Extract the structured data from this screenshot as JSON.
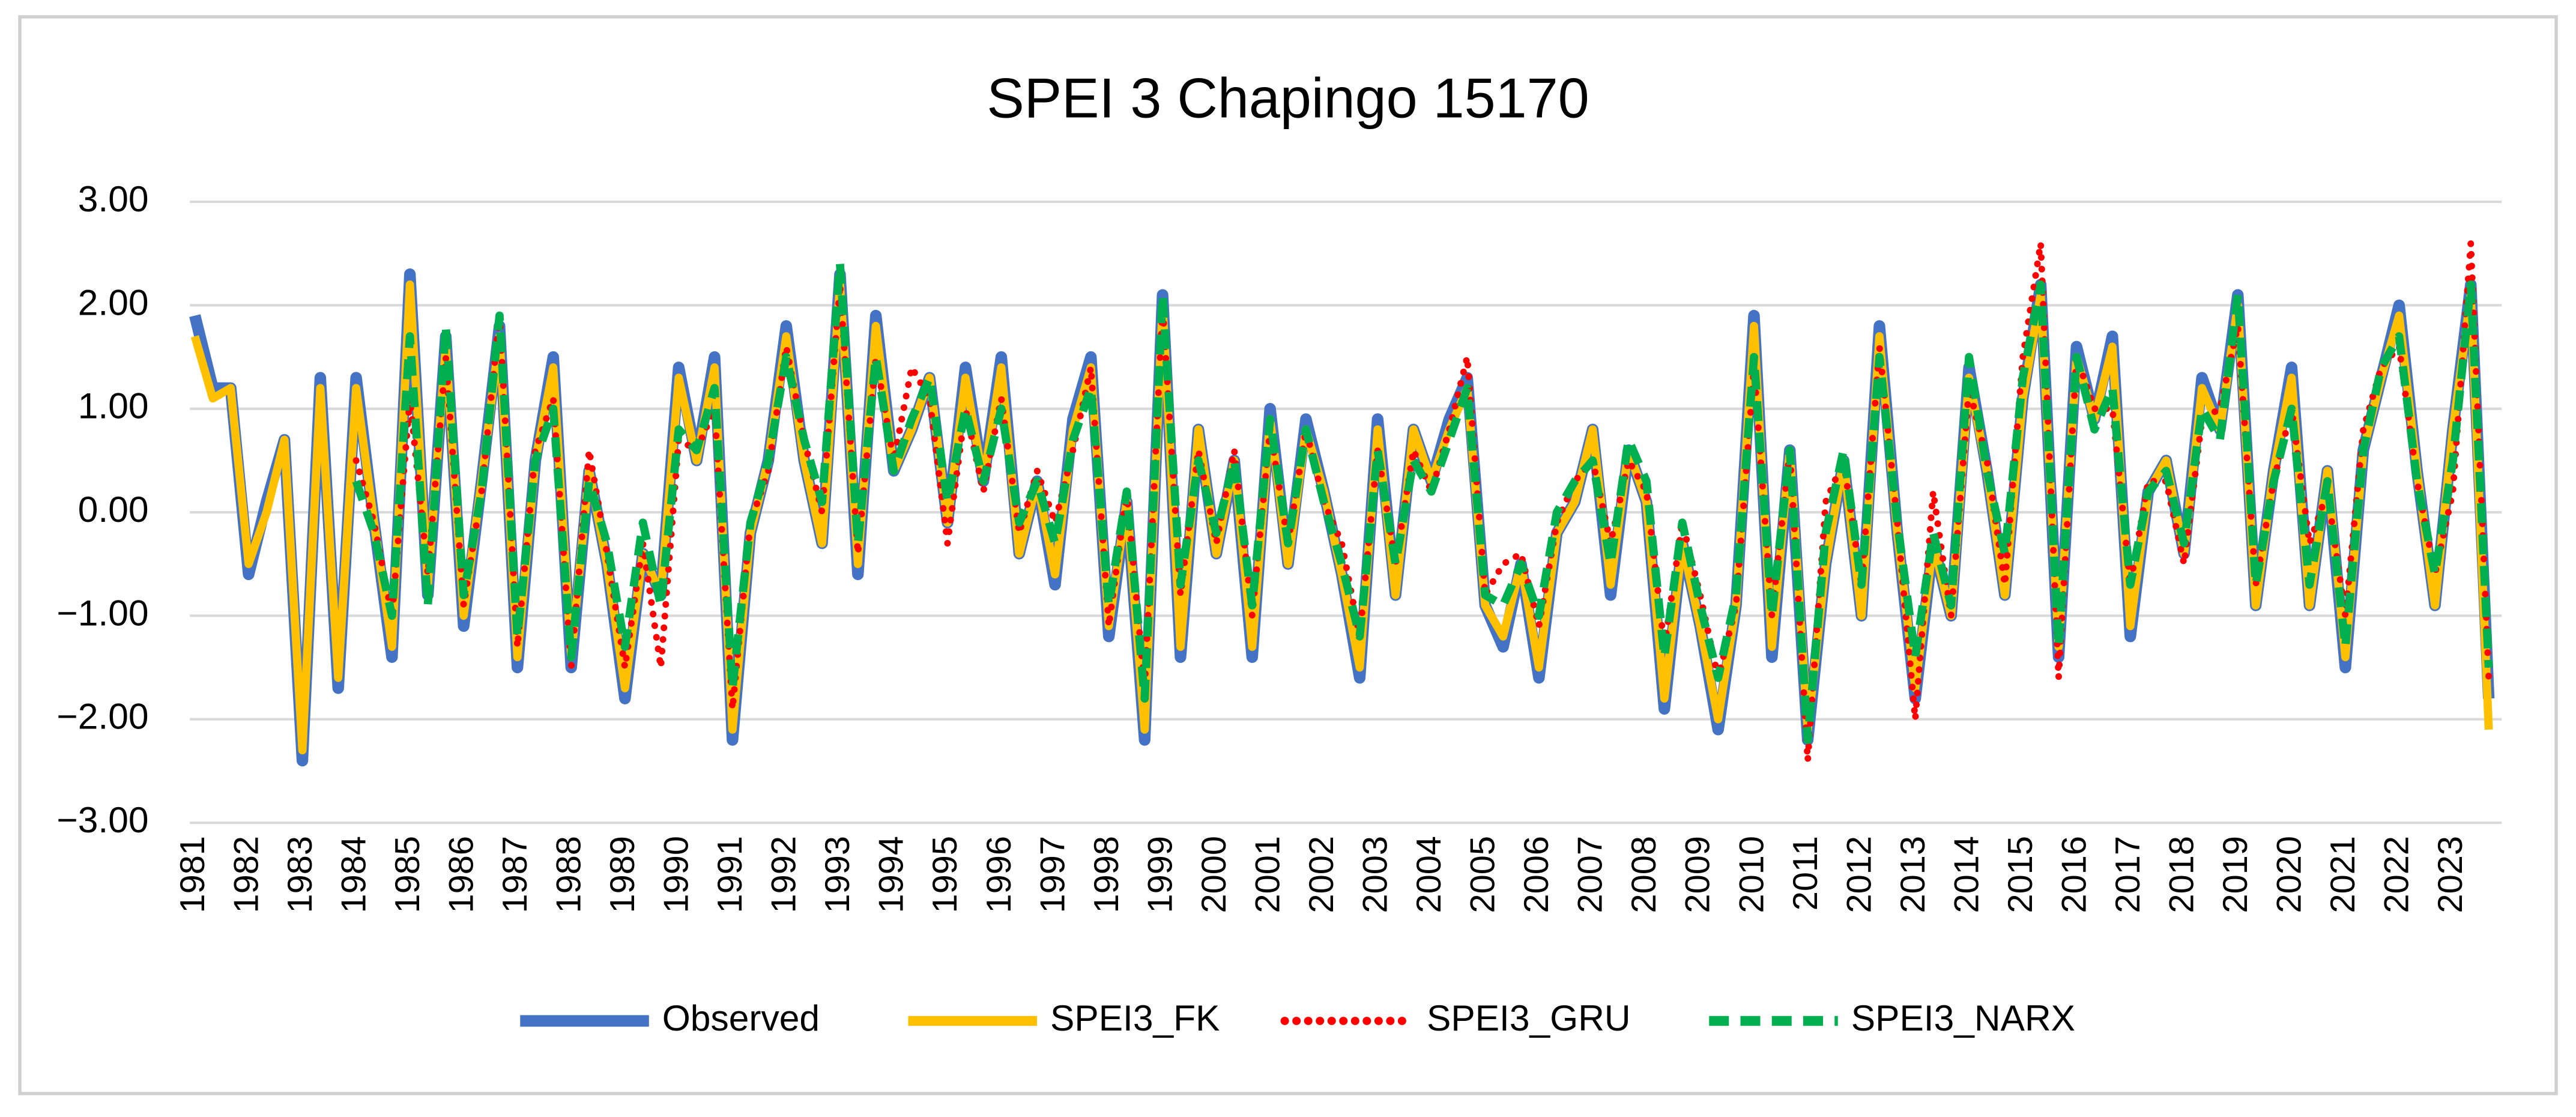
{
  "chart_data": {
    "type": "line",
    "title": "SPEI 3 Chapingo 15170",
    "categories": [
      "1981",
      null,
      null,
      "1982",
      null,
      null,
      "1983",
      null,
      null,
      "1984",
      null,
      null,
      "1985",
      null,
      null,
      "1986",
      null,
      null,
      "1987",
      null,
      null,
      "1988",
      null,
      null,
      "1989",
      null,
      null,
      "1990",
      null,
      null,
      "1991",
      null,
      null,
      "1992",
      null,
      null,
      "1993",
      null,
      null,
      "1994",
      null,
      null,
      "1995",
      null,
      null,
      "1996",
      null,
      null,
      "1997",
      null,
      null,
      "1998",
      null,
      null,
      "1999",
      null,
      null,
      "2000",
      null,
      null,
      "2001",
      null,
      null,
      "2002",
      null,
      null,
      "2003",
      null,
      null,
      "2004",
      null,
      null,
      "2005",
      null,
      null,
      "2006",
      null,
      null,
      "2007",
      null,
      null,
      "2008",
      null,
      null,
      "2009",
      null,
      null,
      "2010",
      null,
      null,
      "2011",
      null,
      null,
      "2012",
      null,
      null,
      "2013",
      null,
      null,
      "2014",
      null,
      null,
      "2015",
      null,
      null,
      "2016",
      null,
      null,
      "2017",
      null,
      null,
      "2018",
      null,
      null,
      "2019",
      null,
      null,
      "2020",
      null,
      null,
      "2021",
      null,
      null,
      "2022",
      null,
      null,
      "2023",
      null,
      null
    ],
    "series": [
      {
        "name": "Observed",
        "color": "#4472c4",
        "style": "solid",
        "values": [
          1.9,
          1.2,
          1.2,
          -0.6,
          0.1,
          0.7,
          -2.4,
          1.3,
          -1.7,
          1.3,
          -0.1,
          -1.4,
          2.3,
          -0.8,
          1.7,
          -1.1,
          0.3,
          1.8,
          -1.5,
          0.5,
          1.5,
          -1.5,
          0.4,
          -0.5,
          -1.8,
          -0.4,
          -0.8,
          1.4,
          0.5,
          1.5,
          -2.2,
          -0.2,
          0.5,
          1.8,
          0.5,
          -0.3,
          2.3,
          -0.6,
          1.9,
          0.4,
          0.8,
          1.3,
          -0.1,
          1.4,
          0.3,
          1.5,
          -0.4,
          0.3,
          -0.7,
          0.9,
          1.5,
          -1.2,
          0.1,
          -2.2,
          2.1,
          -1.4,
          0.8,
          -0.4,
          0.5,
          -1.4,
          1.0,
          -0.5,
          0.9,
          0.2,
          -0.6,
          -1.6,
          0.9,
          -0.8,
          0.8,
          0.3,
          0.9,
          1.3,
          -0.9,
          -1.3,
          -0.5,
          -1.6,
          -0.2,
          0.1,
          0.8,
          -0.8,
          0.6,
          0.1,
          -1.9,
          -0.3,
          -1.1,
          -2.1,
          -0.9,
          1.9,
          -1.4,
          0.6,
          -2.2,
          -0.5,
          0.5,
          -1.0,
          1.8,
          -0.2,
          -1.8,
          -0.3,
          -1.0,
          1.4,
          0.4,
          -0.8,
          1.1,
          2.2,
          -1.4,
          1.6,
          0.9,
          1.7,
          -1.2,
          0.2,
          0.5,
          -0.4,
          1.3,
          0.8,
          2.1,
          -0.9,
          0.4,
          1.4,
          -0.9,
          0.4,
          -1.5,
          0.6,
          1.3,
          2.0,
          0.4,
          -0.9,
          0.8,
          2.2,
          -1.8
        ]
      },
      {
        "name": "SPEI3_FK",
        "color": "#ffc000",
        "style": "solid",
        "values": [
          1.7,
          1.1,
          1.2,
          -0.5,
          0.0,
          0.7,
          -2.3,
          1.2,
          -1.6,
          1.2,
          -0.1,
          -1.3,
          2.2,
          -0.7,
          1.6,
          -1.0,
          0.3,
          1.7,
          -1.4,
          0.5,
          1.4,
          -1.4,
          0.4,
          -0.5,
          -1.7,
          -0.4,
          -0.8,
          1.3,
          0.5,
          1.4,
          -2.1,
          -0.2,
          0.5,
          1.7,
          0.5,
          -0.3,
          2.2,
          -0.5,
          1.8,
          0.4,
          0.8,
          1.3,
          -0.1,
          1.3,
          0.3,
          1.4,
          -0.4,
          0.3,
          -0.6,
          0.8,
          1.4,
          -1.1,
          0.1,
          -2.1,
          2.0,
          -1.3,
          0.8,
          -0.4,
          0.5,
          -1.3,
          0.9,
          -0.5,
          0.8,
          0.2,
          -0.6,
          -1.5,
          0.8,
          -0.8,
          0.8,
          0.3,
          0.8,
          1.2,
          -0.9,
          -1.2,
          -0.5,
          -1.5,
          -0.2,
          0.1,
          0.8,
          -0.7,
          0.6,
          0.1,
          -1.8,
          -0.3,
          -1.1,
          -2.0,
          -0.9,
          1.8,
          -1.3,
          0.6,
          -2.1,
          -0.5,
          0.5,
          -1.0,
          1.7,
          -0.2,
          -1.7,
          -0.3,
          -1.0,
          1.3,
          0.4,
          -0.8,
          1.1,
          2.1,
          -1.3,
          1.5,
          0.9,
          1.6,
          -1.1,
          0.2,
          0.5,
          -0.4,
          1.2,
          0.8,
          2.0,
          -0.9,
          0.4,
          1.3,
          -0.9,
          0.4,
          -1.4,
          0.6,
          1.3,
          1.9,
          0.4,
          -0.9,
          0.8,
          2.1,
          -2.1
        ]
      },
      {
        "name": "SPEI3_GRU",
        "color": "#ff0000",
        "style": "dotted",
        "values": [
          null,
          null,
          null,
          null,
          null,
          null,
          null,
          null,
          null,
          0.5,
          -0.1,
          -1.0,
          1.1,
          -0.6,
          1.5,
          -0.9,
          0.2,
          1.9,
          -1.3,
          0.6,
          1.1,
          -1.5,
          0.6,
          -0.4,
          -1.5,
          -0.3,
          -1.5,
          0.7,
          0.6,
          1.0,
          -1.9,
          -0.1,
          0.4,
          1.6,
          0.7,
          0.0,
          2.2,
          -0.4,
          1.5,
          0.5,
          1.4,
          1.1,
          -0.3,
          1.0,
          0.2,
          1.1,
          -0.2,
          0.4,
          -0.1,
          0.6,
          1.4,
          -1.1,
          0.2,
          -1.7,
          2.0,
          -0.8,
          0.6,
          -0.3,
          0.6,
          -1.0,
          0.8,
          -0.3,
          0.8,
          0.1,
          -0.3,
          -1.2,
          0.6,
          -0.5,
          0.6,
          0.2,
          0.8,
          1.5,
          -0.8,
          -0.5,
          -0.4,
          -1.1,
          -0.1,
          0.3,
          0.5,
          -0.3,
          0.5,
          0.2,
          -1.3,
          -0.1,
          -0.8,
          -1.6,
          -0.9,
          1.4,
          -1.0,
          0.6,
          -2.4,
          0.1,
          0.5,
          -0.7,
          1.6,
          -0.1,
          -2.0,
          0.2,
          -1.0,
          1.2,
          0.5,
          -0.7,
          1.5,
          2.6,
          -1.6,
          1.5,
          1.0,
          1.0,
          -0.7,
          0.3,
          0.3,
          -0.5,
          0.9,
          1.0,
          1.8,
          -0.7,
          0.3,
          1.0,
          -0.3,
          0.2,
          -1.0,
          0.8,
          1.4,
          1.6,
          0.3,
          -0.6,
          0.2,
          2.6,
          -1.6
        ]
      },
      {
        "name": "SPEI3_NARX",
        "color": "#00b050",
        "style": "dashed",
        "values": [
          null,
          null,
          null,
          null,
          null,
          null,
          null,
          null,
          null,
          0.3,
          -0.2,
          -1.0,
          1.7,
          -0.9,
          1.8,
          -0.8,
          0.2,
          1.9,
          -1.2,
          0.5,
          1.0,
          -1.4,
          0.3,
          -0.3,
          -1.3,
          -0.1,
          -0.9,
          0.8,
          0.6,
          1.2,
          -1.7,
          -0.1,
          0.5,
          1.5,
          0.7,
          0.1,
          2.4,
          -0.3,
          1.5,
          0.4,
          0.9,
          1.3,
          0.1,
          1.0,
          0.3,
          1.0,
          -0.1,
          0.3,
          -0.3,
          0.7,
          1.2,
          -0.9,
          0.2,
          -1.8,
          2.1,
          -0.7,
          0.5,
          -0.2,
          0.5,
          -0.9,
          0.9,
          -0.3,
          0.8,
          0.1,
          -0.5,
          -1.2,
          0.6,
          -0.5,
          0.5,
          0.2,
          0.7,
          1.2,
          -0.8,
          -0.9,
          -0.5,
          -1.0,
          0.0,
          0.3,
          0.5,
          -0.5,
          0.7,
          0.3,
          -1.4,
          -0.1,
          -0.9,
          -1.6,
          -0.8,
          1.5,
          -1.0,
          0.6,
          -2.2,
          -0.2,
          0.6,
          -0.7,
          1.5,
          -0.1,
          -1.4,
          -0.2,
          -0.9,
          1.5,
          0.4,
          -0.4,
          1.3,
          2.2,
          -1.3,
          1.5,
          0.8,
          1.2,
          -0.7,
          0.2,
          0.4,
          -0.3,
          1.0,
          0.7,
          2.1,
          -0.7,
          0.3,
          1.0,
          -0.7,
          0.3,
          -1.3,
          0.6,
          1.4,
          1.7,
          0.3,
          -0.6,
          0.5,
          2.2,
          -1.5
        ]
      }
    ],
    "ylim": [
      -3,
      3
    ],
    "yticks": [
      {
        "value": -3,
        "label": "−3.00"
      },
      {
        "value": -2,
        "label": "−2.00"
      },
      {
        "value": -1,
        "label": "−1.00"
      },
      {
        "value": 0,
        "label": "0.00"
      },
      {
        "value": 1,
        "label": "1.00"
      },
      {
        "value": 2,
        "label": "2.00"
      },
      {
        "value": 3,
        "label": "3.00"
      }
    ],
    "grid": true,
    "legend": "bottom"
  }
}
